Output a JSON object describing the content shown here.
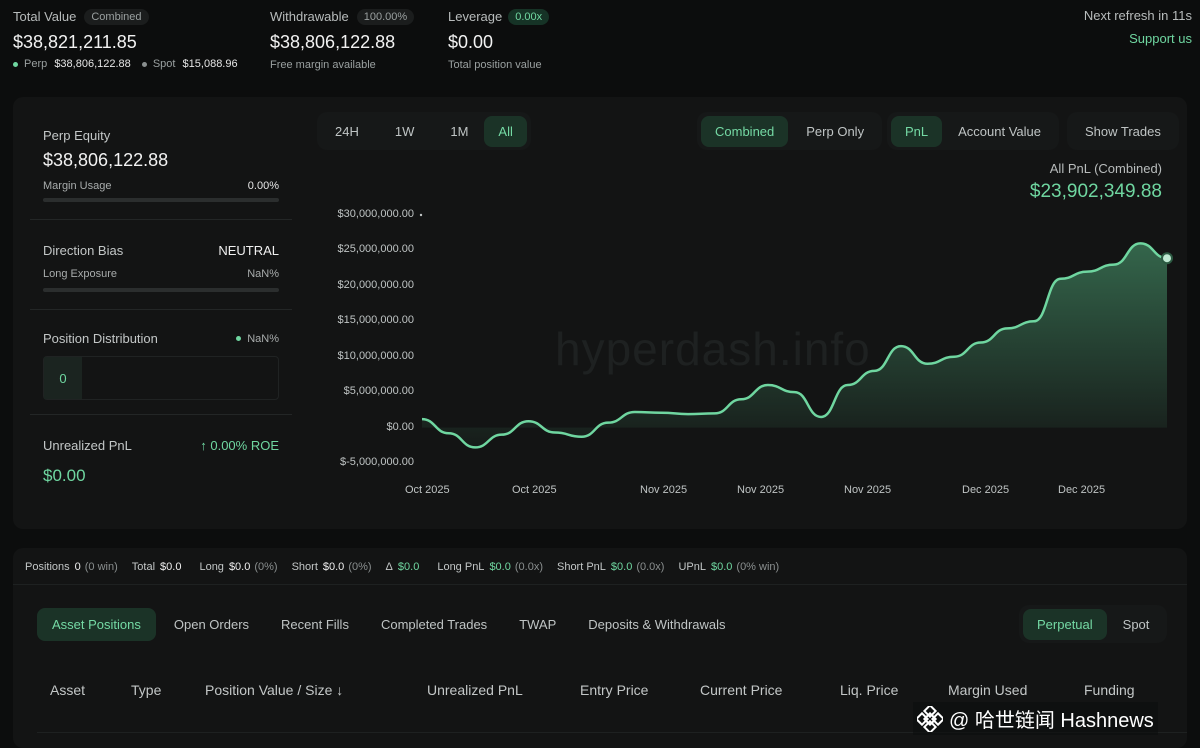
{
  "summary": {
    "total_value_label": "Total Value",
    "total_value_badge": "Combined",
    "total_value": "$38,821,211.85",
    "perp_label": "Perp",
    "perp_value": "$38,806,122.88",
    "spot_label": "Spot",
    "spot_value": "$15,088.96",
    "withdrawable_label": "Withdrawable",
    "withdrawable_badge": "100.00%",
    "withdrawable_value": "$38,806,122.88",
    "withdrawable_sub": "Free margin available",
    "leverage_label": "Leverage",
    "leverage_badge": "0.00x",
    "leverage_value": "$0.00",
    "leverage_sub": "Total position value",
    "refresh_text": "Next refresh in 11s",
    "support_link": "Support us"
  },
  "side": {
    "perp_equity_label": "Perp Equity",
    "perp_equity_value": "$38,806,122.88",
    "margin_usage_label": "Margin Usage",
    "margin_usage_value": "0.00%",
    "direction_bias_label": "Direction Bias",
    "direction_bias_value": "NEUTRAL",
    "long_exposure_label": "Long Exposure",
    "long_exposure_value": "NaN%",
    "position_distribution_label": "Position Distribution",
    "position_distribution_value": "NaN%",
    "distribution_count": "0",
    "unrealized_pnl_label": "Unrealized PnL",
    "roe_value": "↑ 0.00% ROE",
    "unrealized_pnl_value": "$0.00"
  },
  "chart_controls": {
    "ranges": [
      "24H",
      "1W",
      "1M",
      "All"
    ],
    "active_range": "All",
    "modes": [
      "Combined",
      "Perp Only"
    ],
    "metrics": [
      "PnL",
      "Account Value"
    ],
    "show_trades": "Show Trades",
    "pnl_title": "All PnL (Combined)",
    "pnl_value": "$23,902,349.88",
    "watermark": "hyperdash.info"
  },
  "chart_data": {
    "type": "area",
    "title": "All PnL (Combined)",
    "y_ticks": [
      "$30,000,000.00",
      "$25,000,000.00",
      "$20,000,000.00",
      "$15,000,000.00",
      "$10,000,000.00",
      "$5,000,000.00",
      "$0.00",
      "$-5,000,000.00"
    ],
    "ylim": [
      -5000000,
      30000000
    ],
    "x_ticks": [
      "Oct 2025",
      "Oct 2025",
      "Nov 2025",
      "Nov 2025",
      "Nov 2025",
      "Dec 2025",
      "Dec 2025"
    ],
    "series": [
      {
        "values": [
          1200000,
          -800000,
          -2800000,
          -1000000,
          900000,
          -700000,
          -1300000,
          700000,
          2200000,
          2100000,
          1900000,
          2000000,
          4000000,
          6000000,
          5000000,
          1500000,
          6000000,
          8000000,
          11500000,
          9000000,
          10000000,
          12000000,
          14000000,
          15000000,
          21000000,
          22000000,
          23000000,
          26000000,
          23900000
        ]
      }
    ],
    "grid": false,
    "accent": "#6fd6a0"
  },
  "stats_bar": {
    "items": [
      {
        "label": "Positions",
        "value": "0",
        "extra": "(0 win)"
      },
      {
        "label": "Total",
        "value": "$0.0",
        "extra": ""
      },
      {
        "label": "Long",
        "value": "$0.0",
        "extra": "(0%)"
      },
      {
        "label": "Short",
        "value": "$0.0",
        "extra": "(0%)"
      },
      {
        "label": "Δ",
        "value": "$0.0",
        "extra": ""
      },
      {
        "label": "Long PnL",
        "value": "$0.0",
        "extra": "(0.0x)"
      },
      {
        "label": "Short PnL",
        "value": "$0.0",
        "extra": "(0.0x)"
      },
      {
        "label": "UPnL",
        "value": "$0.0",
        "extra": "(0% win)"
      }
    ]
  },
  "tabs": {
    "items": [
      "Asset Positions",
      "Open Orders",
      "Recent Fills",
      "Completed Trades",
      "TWAP",
      "Deposits & Withdrawals"
    ],
    "market_toggle": [
      "Perpetual",
      "Spot"
    ]
  },
  "table": {
    "headers": [
      "Asset",
      "Type",
      "Position Value / Size ↓",
      "Unrealized PnL",
      "Entry Price",
      "Current Price",
      "Liq. Price",
      "Margin Used",
      "Funding"
    ]
  },
  "overlay": {
    "brand": "@ 哈世链闻 Hashnews"
  }
}
